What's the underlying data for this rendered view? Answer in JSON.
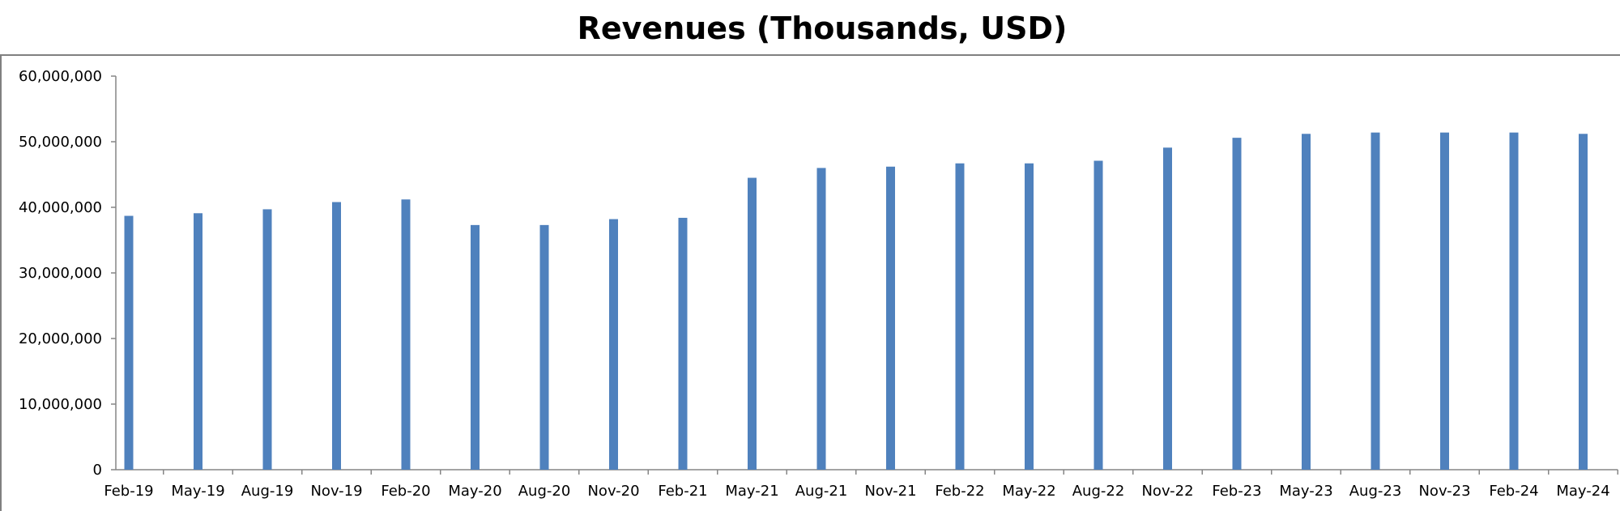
{
  "chart_data": {
    "type": "bar",
    "title": "Revenues (Thousands, USD)",
    "xlabel": "",
    "ylabel": "",
    "categories": [
      "Feb-19",
      "May-19",
      "Aug-19",
      "Nov-19",
      "Feb-20",
      "May-20",
      "Aug-20",
      "Nov-20",
      "Feb-21",
      "May-21",
      "Aug-21",
      "Nov-21",
      "Feb-22",
      "May-22",
      "Aug-22",
      "Nov-22",
      "Feb-23",
      "May-23",
      "Aug-23",
      "Nov-23",
      "Feb-24",
      "May-24"
    ],
    "values": [
      38700000,
      39100000,
      39700000,
      40800000,
      41200000,
      37300000,
      37300000,
      38200000,
      38400000,
      44500000,
      46000000,
      46200000,
      46700000,
      46700000,
      47100000,
      49100000,
      50600000,
      51200000,
      51400000,
      51400000,
      51400000,
      51200000
    ],
    "ylim": [
      0,
      60000000
    ],
    "yticks": [
      0,
      10000000,
      20000000,
      30000000,
      40000000,
      50000000,
      60000000
    ],
    "ytick_labels": [
      "0",
      "10,000,000",
      "20,000,000",
      "30,000,000",
      "40,000,000",
      "50,000,000",
      "60,000,000"
    ],
    "grid": false,
    "legend": "none",
    "colors": {
      "bar": "#4F81BD",
      "axis": "#868686",
      "border": "#808080"
    }
  }
}
